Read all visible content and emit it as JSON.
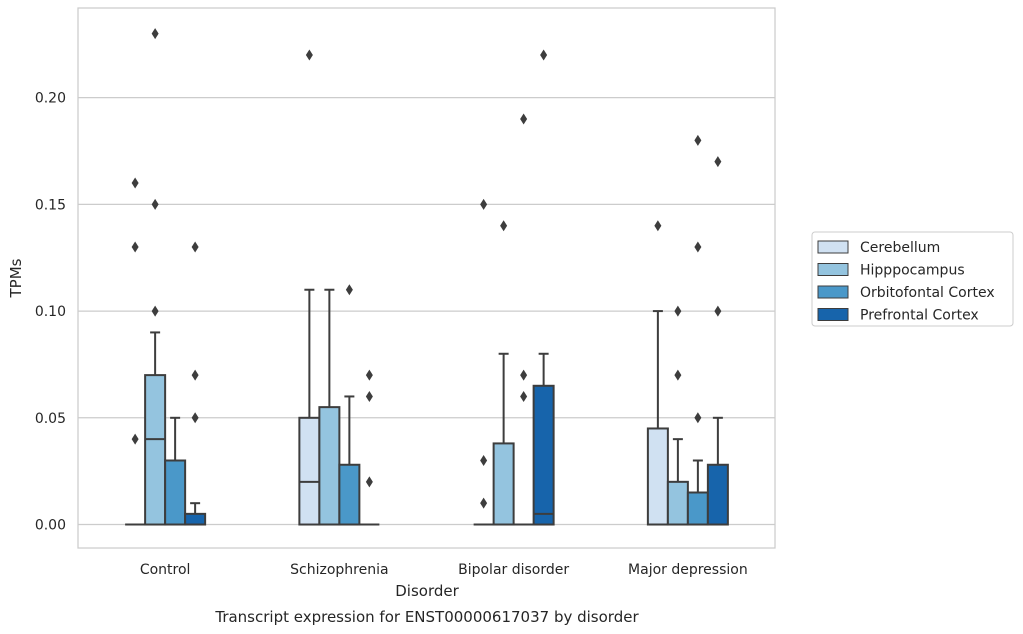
{
  "chart_data": {
    "type": "box",
    "xlabel": "Disorder",
    "ylabel": "TPMs",
    "caption": "Transcript expression for ENST00000617037 by disorder",
    "categories": [
      "Control",
      "Schizophrenia",
      "Bipolar disorder",
      "Major depression"
    ],
    "ylim": [
      -0.011,
      0.242
    ],
    "yticks": [
      0.0,
      0.05,
      0.1,
      0.15,
      0.2
    ],
    "ytick_labels": [
      "0.00",
      "0.05",
      "0.10",
      "0.15",
      "0.20"
    ],
    "grid": "horizontal",
    "legend_position": "right",
    "series": [
      {
        "name": "Cerebellum",
        "color": "#d0e1f2",
        "boxes": [
          {
            "category": "Control",
            "whisker_low": 0,
            "q1": 0,
            "median": 0,
            "q3": 0,
            "whisker_high": 0,
            "outliers": [
              0.04,
              0.13,
              0.16
            ]
          },
          {
            "category": "Schizophrenia",
            "whisker_low": 0,
            "q1": 0,
            "median": 0.02,
            "q3": 0.05,
            "whisker_high": 0.11,
            "outliers": [
              0.22
            ]
          },
          {
            "category": "Bipolar disorder",
            "whisker_low": 0,
            "q1": 0,
            "median": 0,
            "q3": 0,
            "whisker_high": 0,
            "outliers": [
              0.01,
              0.03,
              0.15
            ]
          },
          {
            "category": "Major depression",
            "whisker_low": 0,
            "q1": 0,
            "median": 0,
            "q3": 0.045,
            "whisker_high": 0.1,
            "outliers": [
              0.14
            ]
          }
        ]
      },
      {
        "name": "Hipppocampus",
        "color": "#94c4df",
        "boxes": [
          {
            "category": "Control",
            "whisker_low": 0,
            "q1": 0,
            "median": 0.04,
            "q3": 0.07,
            "whisker_high": 0.09,
            "outliers": [
              0.1,
              0.15,
              0.23
            ]
          },
          {
            "category": "Schizophrenia",
            "whisker_low": 0,
            "q1": 0,
            "median": 0,
            "q3": 0.055,
            "whisker_high": 0.11,
            "outliers": []
          },
          {
            "category": "Bipolar disorder",
            "whisker_low": 0,
            "q1": 0,
            "median": 0,
            "q3": 0.038,
            "whisker_high": 0.08,
            "outliers": [
              0.14
            ]
          },
          {
            "category": "Major depression",
            "whisker_low": 0,
            "q1": 0,
            "median": 0,
            "q3": 0.02,
            "whisker_high": 0.04,
            "outliers": [
              0.07,
              0.1
            ]
          }
        ]
      },
      {
        "name": "Orbitofontal Cortex",
        "color": "#4a98c9",
        "boxes": [
          {
            "category": "Control",
            "whisker_low": 0,
            "q1": 0,
            "median": 0,
            "q3": 0.03,
            "whisker_high": 0.05,
            "outliers": []
          },
          {
            "category": "Schizophrenia",
            "whisker_low": 0,
            "q1": 0,
            "median": 0,
            "q3": 0.028,
            "whisker_high": 0.06,
            "outliers": [
              0.11
            ]
          },
          {
            "category": "Bipolar disorder",
            "whisker_low": 0,
            "q1": 0,
            "median": 0,
            "q3": 0,
            "whisker_high": 0,
            "outliers": [
              0.06,
              0.07,
              0.19
            ]
          },
          {
            "category": "Major depression",
            "whisker_low": 0,
            "q1": 0,
            "median": 0,
            "q3": 0.015,
            "whisker_high": 0.03,
            "outliers": [
              0.05,
              0.13,
              0.18
            ]
          }
        ]
      },
      {
        "name": "Prefrontal Cortex",
        "color": "#1764ab",
        "boxes": [
          {
            "category": "Control",
            "whisker_low": 0,
            "q1": 0,
            "median": 0,
            "q3": 0.005,
            "whisker_high": 0.01,
            "outliers": [
              0.05,
              0.07,
              0.13
            ]
          },
          {
            "category": "Schizophrenia",
            "whisker_low": 0,
            "q1": 0,
            "median": 0,
            "q3": 0,
            "whisker_high": 0,
            "outliers": [
              0.02,
              0.06,
              0.07
            ]
          },
          {
            "category": "Bipolar disorder",
            "whisker_low": 0,
            "q1": 0,
            "median": 0.005,
            "q3": 0.065,
            "whisker_high": 0.08,
            "outliers": [
              0.22
            ]
          },
          {
            "category": "Major depression",
            "whisker_low": 0,
            "q1": 0,
            "median": 0,
            "q3": 0.028,
            "whisker_high": 0.05,
            "outliers": [
              0.1,
              0.17
            ]
          }
        ]
      }
    ]
  }
}
